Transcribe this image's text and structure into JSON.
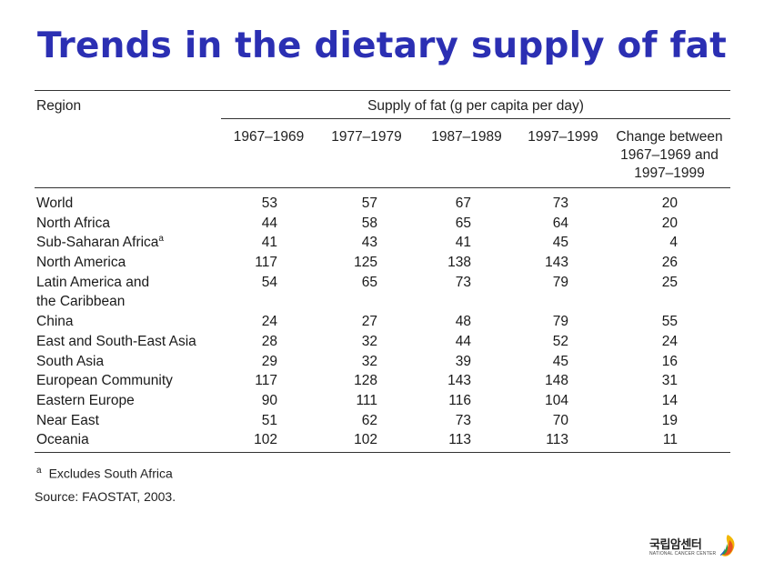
{
  "title": "Trends in the dietary supply of fat",
  "table": {
    "region_header": "Region",
    "supply_header": "Supply of fat (g per capita per day)",
    "columns": [
      "1967–1969",
      "1977–1979",
      "1987–1989",
      "1997–1999",
      "Change between\n1967–1969 and\n1997–1999"
    ],
    "rows": [
      {
        "region": "World",
        "sup": "",
        "values": [
          "53",
          "57",
          "67",
          "73",
          "20"
        ]
      },
      {
        "region": "North Africa",
        "sup": "",
        "values": [
          "44",
          "58",
          "65",
          "64",
          "20"
        ]
      },
      {
        "region": "Sub-Saharan Africa",
        "sup": "a",
        "values": [
          "41",
          "43",
          "41",
          "45",
          "4"
        ]
      },
      {
        "region": "North America",
        "sup": "",
        "values": [
          "117",
          "125",
          "138",
          "143",
          "26"
        ]
      },
      {
        "region": "Latin America and\n  the Caribbean",
        "sup": "",
        "values": [
          "54",
          "65",
          "73",
          "79",
          "25"
        ]
      },
      {
        "region": "China",
        "sup": "",
        "values": [
          "24",
          "27",
          "48",
          "79",
          "55"
        ]
      },
      {
        "region": "East and South-East Asia",
        "sup": "",
        "values": [
          "28",
          "32",
          "44",
          "52",
          "24"
        ]
      },
      {
        "region": "South Asia",
        "sup": "",
        "values": [
          "29",
          "32",
          "39",
          "45",
          "16"
        ]
      },
      {
        "region": "European Community",
        "sup": "",
        "values": [
          "117",
          "128",
          "143",
          "148",
          "31"
        ]
      },
      {
        "region": "Eastern Europe",
        "sup": "",
        "values": [
          "90",
          "111",
          "116",
          "104",
          "14"
        ]
      },
      {
        "region": "Near East",
        "sup": "",
        "values": [
          "51",
          "62",
          "73",
          "70",
          "19"
        ]
      },
      {
        "region": "Oceania",
        "sup": "",
        "values": [
          "102",
          "102",
          "113",
          "113",
          "11"
        ]
      }
    ]
  },
  "footnotes": {
    "mark": "a",
    "note": "Excludes South Africa",
    "source": "Source: FAOSTAT, 2003."
  },
  "logo": {
    "korean": "국립암센터",
    "english": "NATIONAL CANCER CENTER"
  },
  "colors": {
    "title": "#2b2fb3"
  }
}
